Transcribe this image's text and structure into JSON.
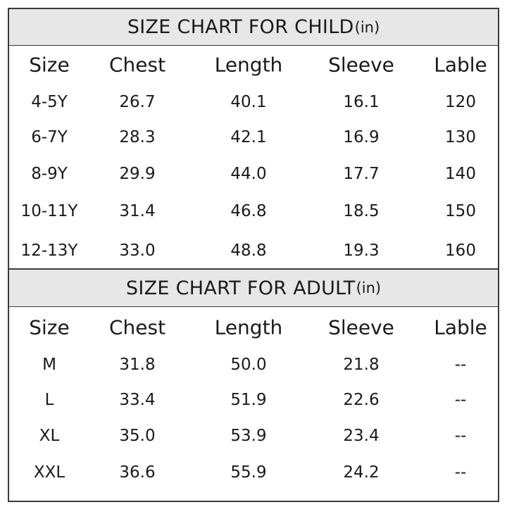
{
  "sections": [
    {
      "title": "SIZE CHART FOR CHILD",
      "unit": "(in)",
      "columns": [
        "Size",
        "Chest",
        "Length",
        "Sleeve",
        "Lable"
      ],
      "rows": [
        [
          "4-5Y",
          "26.7",
          "40.1",
          "16.1",
          "120"
        ],
        [
          "6-7Y",
          "28.3",
          "42.1",
          "16.9",
          "130"
        ],
        [
          "8-9Y",
          "29.9",
          "44.0",
          "17.7",
          "140"
        ],
        [
          "10-11Y",
          "31.4",
          "46.8",
          "18.5",
          "150"
        ],
        [
          "12-13Y",
          "33.0",
          "48.8",
          "19.3",
          "160"
        ]
      ]
    },
    {
      "title": "SIZE CHART FOR ADULT",
      "unit": "(in)",
      "columns": [
        "Size",
        "Chest",
        "Length",
        "Sleeve",
        "Lable"
      ],
      "rows": [
        [
          "M",
          "31.8",
          "50.0",
          "21.8",
          "--"
        ],
        [
          "L",
          "33.4",
          "51.9",
          "22.6",
          "--"
        ],
        [
          "XL",
          "35.0",
          "53.9",
          "23.4",
          "--"
        ],
        [
          "XXL",
          "36.6",
          "55.9",
          "24.2",
          "--"
        ]
      ]
    }
  ]
}
